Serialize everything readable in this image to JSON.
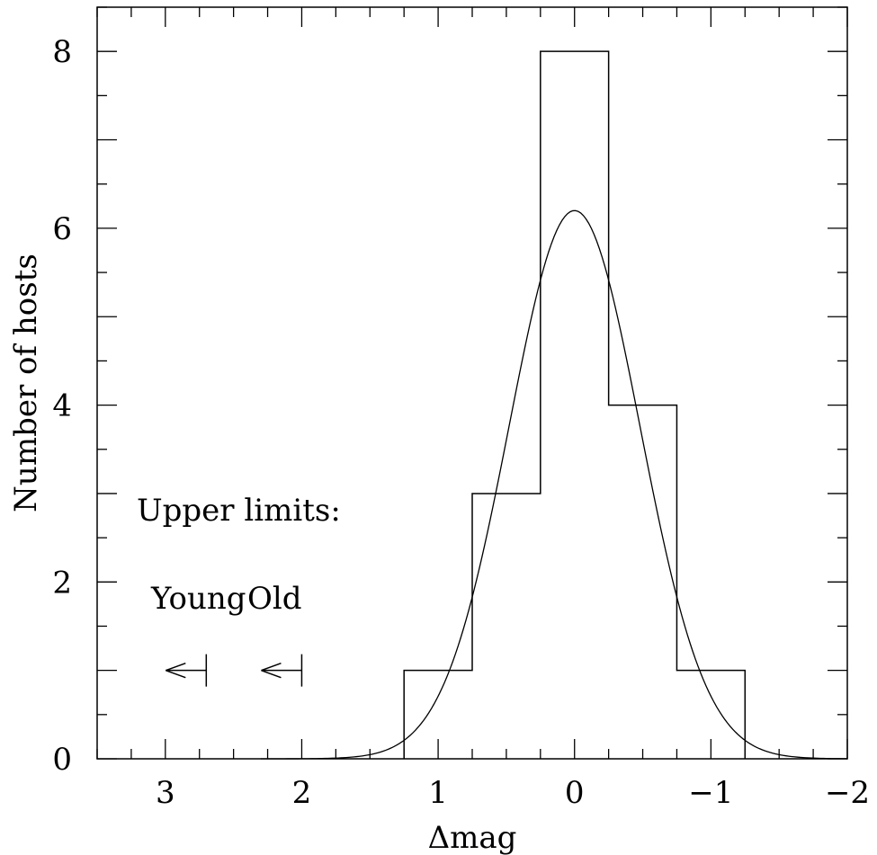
{
  "chart_data": {
    "type": "histogram",
    "xlabel": "Δmag",
    "ylabel": "Number of hosts",
    "xlim": [
      3.5,
      -2
    ],
    "ylim": [
      0,
      8.5
    ],
    "x_inverted": true,
    "x_ticks": [
      3,
      2,
      1,
      0,
      -1,
      -2
    ],
    "x_tick_labels": [
      "3",
      "2",
      "1",
      "0",
      "−1",
      "−2"
    ],
    "y_ticks": [
      0,
      2,
      4,
      6,
      8
    ],
    "y_tick_labels": [
      "0",
      "2",
      "4",
      "6",
      "8"
    ],
    "bin_edges": [
      1.25,
      0.75,
      0.25,
      -0.25,
      -0.75,
      -1.25
    ],
    "counts": [
      1,
      3,
      8,
      4,
      1
    ],
    "gaussian_fit": {
      "amplitude": 6.2,
      "center": 0.0,
      "sigma": 0.48,
      "x_range": [
        2.3,
        -2
      ]
    },
    "annotations": {
      "title_text": "Upper limits:",
      "young_label": "Young",
      "old_label": "Old"
    },
    "upper_limits": [
      {
        "label": "Young",
        "x": 2.7,
        "y": 1
      },
      {
        "label": "Old",
        "x": 2.0,
        "y": 1
      }
    ]
  }
}
